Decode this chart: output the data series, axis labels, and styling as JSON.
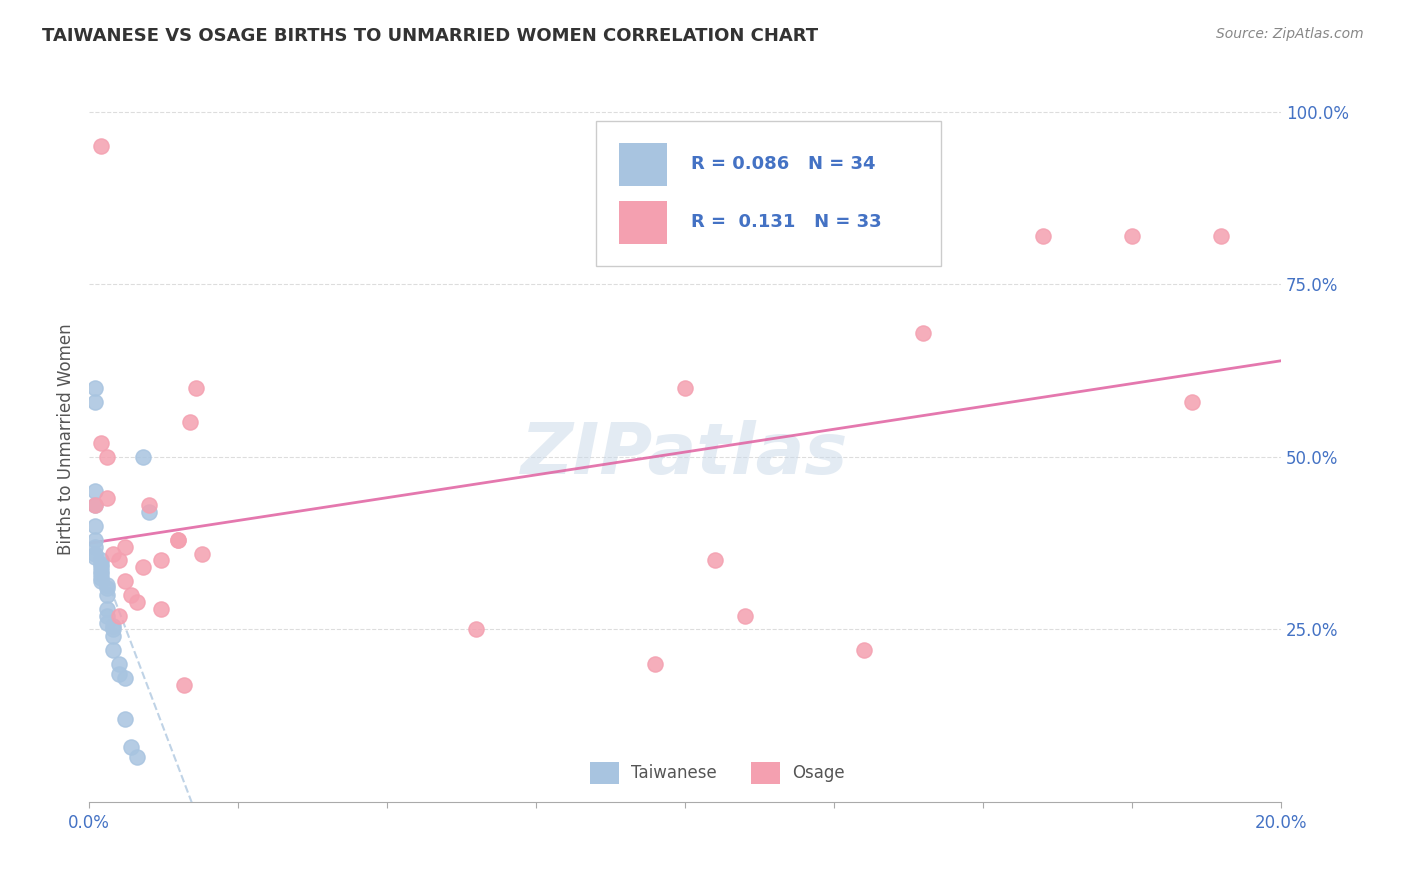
{
  "title": "TAIWANESE VS OSAGE BIRTHS TO UNMARRIED WOMEN CORRELATION CHART",
  "source": "Source: ZipAtlas.com",
  "xlabel": "",
  "ylabel": "Births to Unmarried Women",
  "xlim": [
    0.0,
    0.2
  ],
  "ylim": [
    0.0,
    1.05
  ],
  "xticks": [
    0.0,
    0.025,
    0.05,
    0.075,
    0.1,
    0.125,
    0.15,
    0.175,
    0.2
  ],
  "xticklabels": [
    "0.0%",
    "",
    "",
    "",
    "",
    "",
    "",
    "",
    "20.0%"
  ],
  "ytick_right_labels": [
    "25.0%",
    "50.0%",
    "75.0%",
    "100.0%"
  ],
  "ytick_right_vals": [
    0.25,
    0.5,
    0.75,
    1.0
  ],
  "taiwanese_R": 0.086,
  "taiwanese_N": 34,
  "osage_R": 0.131,
  "osage_N": 33,
  "taiwanese_color": "#a8c4e0",
  "taiwanese_line_color": "#a8c4e0",
  "osage_color": "#f4a0b0",
  "osage_line_color": "#e8608a",
  "legend_R_color": "#4472c4",
  "legend_N_color": "#e03070",
  "watermark": "ZIPatlas",
  "watermark_color": "#c8d8e8",
  "taiwanese_x": [
    0.001,
    0.001,
    0.001,
    0.001,
    0.001,
    0.002,
    0.002,
    0.002,
    0.002,
    0.002,
    0.002,
    0.002,
    0.003,
    0.003,
    0.003,
    0.003,
    0.003,
    0.003,
    0.004,
    0.004,
    0.004,
    0.004,
    0.005,
    0.005,
    0.006,
    0.006,
    0.007,
    0.008,
    0.009,
    0.01,
    0.001,
    0.001,
    0.001,
    0.001
  ],
  "taiwanese_y": [
    0.4,
    0.38,
    0.37,
    0.36,
    0.355,
    0.35,
    0.345,
    0.34,
    0.335,
    0.33,
    0.325,
    0.32,
    0.315,
    0.31,
    0.3,
    0.28,
    0.27,
    0.26,
    0.255,
    0.25,
    0.24,
    0.22,
    0.2,
    0.185,
    0.18,
    0.12,
    0.08,
    0.065,
    0.5,
    0.42,
    0.6,
    0.58,
    0.45,
    0.43
  ],
  "osage_x": [
    0.001,
    0.002,
    0.003,
    0.003,
    0.004,
    0.005,
    0.005,
    0.006,
    0.006,
    0.007,
    0.008,
    0.009,
    0.01,
    0.012,
    0.012,
    0.015,
    0.015,
    0.016,
    0.017,
    0.018,
    0.019,
    0.065,
    0.1,
    0.105,
    0.11,
    0.13,
    0.14,
    0.16,
    0.175,
    0.185,
    0.002,
    0.095,
    0.19
  ],
  "osage_y": [
    0.43,
    0.52,
    0.5,
    0.44,
    0.36,
    0.35,
    0.27,
    0.37,
    0.32,
    0.3,
    0.29,
    0.34,
    0.43,
    0.35,
    0.28,
    0.38,
    0.38,
    0.17,
    0.55,
    0.6,
    0.36,
    0.25,
    0.6,
    0.35,
    0.27,
    0.22,
    0.68,
    0.82,
    0.82,
    0.58,
    0.95,
    0.2,
    0.82
  ]
}
